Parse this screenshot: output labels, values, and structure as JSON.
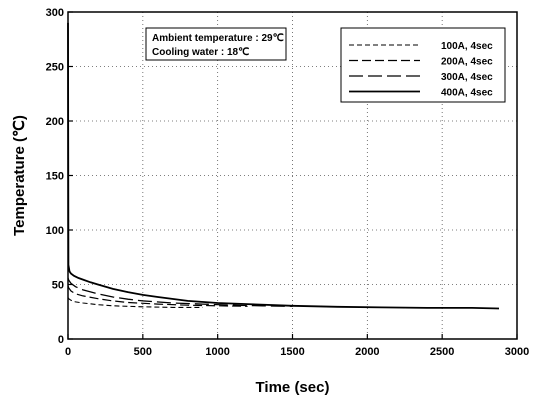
{
  "chart_data": {
    "type": "line",
    "title": "",
    "xlabel": "Time (sec)",
    "ylabel": "Temperature (℃)",
    "xlim": [
      0,
      3000
    ],
    "ylim": [
      0,
      300
    ],
    "x_ticks": [
      0,
      500,
      1000,
      1500,
      2000,
      2500,
      3000
    ],
    "y_ticks": [
      0,
      50,
      100,
      150,
      200,
      250,
      300
    ],
    "grid": "dotted",
    "annotation": {
      "line1": "Ambient temperature : 29℃",
      "line2": "Cooling water : 18℃"
    },
    "legend": {
      "position": "top-right"
    },
    "series": [
      {
        "name": "100A, 4sec",
        "style": "dash-short",
        "x": [
          0,
          5,
          20,
          50,
          100,
          200,
          300,
          500,
          700,
          900
        ],
        "y": [
          38,
          37,
          35.5,
          34,
          33,
          31.5,
          30.5,
          29.5,
          29,
          29
        ]
      },
      {
        "name": "200A, 4sec",
        "style": "dash-medium",
        "x": [
          0,
          5,
          20,
          50,
          100,
          200,
          300,
          400,
          600,
          800,
          1000,
          1200
        ],
        "y": [
          49,
          47,
          44,
          41.5,
          39.5,
          37,
          35,
          33.5,
          32,
          31,
          30.5,
          30
        ]
      },
      {
        "name": "300A, 4sec",
        "style": "dash-long",
        "x": [
          0,
          5,
          20,
          50,
          100,
          200,
          300,
          400,
          500,
          700,
          900,
          1100,
          1300,
          1500
        ],
        "y": [
          56,
          54,
          51,
          48,
          45,
          41.5,
          38.5,
          36.5,
          35,
          33,
          32,
          31,
          30.5,
          30
        ]
      },
      {
        "name": "400A, 4sec",
        "style": "solid",
        "x": [
          0,
          3,
          10,
          20,
          40,
          70,
          100,
          150,
          200,
          300,
          400,
          500,
          600,
          800,
          1000,
          1200,
          1500,
          1800,
          2100,
          2400,
          2700,
          2880
        ],
        "y": [
          290,
          68,
          62,
          60,
          58,
          56,
          54.5,
          52,
          50,
          46,
          43,
          40.5,
          38.5,
          35,
          33,
          32,
          30.5,
          29.5,
          29,
          28.5,
          28.5,
          28
        ]
      }
    ]
  }
}
